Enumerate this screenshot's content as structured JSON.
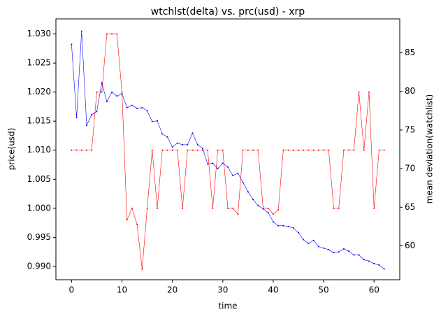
{
  "chart_data": {
    "type": "line",
    "title": "wtchlst(delta) vs. prc(usd) - xrp",
    "xlabel": "time",
    "ylabel": "price(usd)",
    "y2label": "mean deviation(watchlist)",
    "x": [
      0,
      1,
      2,
      3,
      4,
      5,
      6,
      7,
      8,
      9,
      10,
      11,
      12,
      13,
      14,
      15,
      16,
      17,
      18,
      19,
      20,
      21,
      22,
      23,
      24,
      25,
      26,
      27,
      28,
      29,
      30,
      31,
      32,
      33,
      34,
      35,
      36,
      37,
      38,
      39,
      40,
      41,
      42,
      43,
      44,
      45,
      46,
      47,
      48,
      49,
      50,
      51,
      52,
      53,
      54,
      55,
      56,
      57,
      58,
      59,
      60,
      61,
      62
    ],
    "series": [
      {
        "color": "red",
        "values": [
          1.01,
          1.01,
          1.01,
          1.01,
          1.01,
          1.02,
          1.02,
          1.03,
          1.03,
          1.03,
          1.02,
          0.998,
          1.0,
          0.9972,
          0.9895,
          1.0,
          1.01,
          1.0,
          1.01,
          1.01,
          1.01,
          1.01,
          1.0,
          1.01,
          1.01,
          1.01,
          1.01,
          1.01,
          1.0,
          1.01,
          1.01,
          1.0,
          1.0,
          0.999,
          1.01,
          1.01,
          1.01,
          1.01,
          1.0,
          1.0,
          0.999,
          0.9997,
          1.01,
          1.01,
          1.01,
          1.01,
          1.01,
          1.01,
          1.01,
          1.01,
          1.01,
          1.01,
          1.0,
          1.0,
          1.01,
          1.01,
          1.01,
          1.02,
          1.01,
          1.02,
          1.0,
          1.01,
          1.01
        ]
      },
      {
        "color": "blue",
        "axis": "y2",
        "values": [
          86.1,
          76.6,
          87.8,
          75.6,
          77.0,
          77.4,
          81.1,
          78.7,
          79.9,
          79.4,
          79.7,
          77.9,
          78.2,
          77.8,
          77.9,
          77.5,
          76.1,
          76.2,
          74.5,
          74.1,
          72.8,
          73.3,
          73.1,
          73.1,
          74.6,
          73.1,
          72.6,
          70.6,
          70.7,
          70.0,
          70.7,
          70.2,
          69.1,
          69.4,
          68.2,
          67.0,
          66.0,
          65.2,
          64.8,
          64.3,
          63.1,
          62.6,
          62.6,
          62.5,
          62.3,
          61.7,
          60.8,
          60.3,
          60.7,
          59.9,
          59.7,
          59.5,
          59.1,
          59.2,
          59.6,
          59.3,
          58.8,
          58.8,
          58.2,
          58.0,
          57.7,
          57.5,
          57.0
        ]
      }
    ],
    "xlim": [
      -3.1,
      65.1
    ],
    "xticks": [
      0,
      10,
      20,
      30,
      40,
      50,
      60
    ],
    "ylim": [
      0.9877,
      1.0326
    ],
    "yticks": [
      {
        "value": 0.99,
        "label": "0.990"
      },
      0.995,
      {
        "value": 1.0,
        "label": "1.000"
      },
      1.005,
      {
        "value": 1.01,
        "label": "1.010"
      },
      1.015,
      {
        "value": 1.02,
        "label": "1.020"
      },
      1.025,
      {
        "value": 1.03,
        "label": "1.030"
      }
    ],
    "y2lim": [
      55.6,
      89.4
    ],
    "y2ticks": [
      60,
      65,
      70,
      75,
      80,
      85
    ]
  }
}
